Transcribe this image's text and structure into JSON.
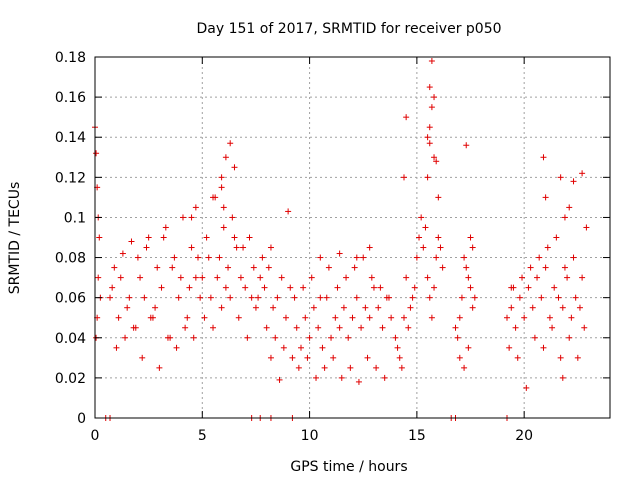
{
  "chart_data": {
    "type": "scatter",
    "title": "Day 151 of 2017, SRMTID for receiver p050",
    "xlabel": "GPS time / hours",
    "ylabel": "SRMTID / TECUs",
    "xlim": [
      0,
      24
    ],
    "ylim": [
      0,
      0.18
    ],
    "x_ticks": [
      0,
      5,
      10,
      15,
      20
    ],
    "x_tick_labels": [
      "0",
      "5",
      "10",
      "15",
      "20"
    ],
    "y_ticks": [
      0,
      0.02,
      0.04,
      0.06,
      0.08,
      0.1,
      0.12,
      0.14,
      0.16,
      0.18
    ],
    "y_tick_labels": [
      "0",
      "0.02",
      "0.04",
      "0.06",
      "0.08",
      "0.1",
      "0.12",
      "0.14",
      "0.16",
      "0.18"
    ],
    "grid": true,
    "marker": "+",
    "series_color": "#e00000",
    "series": [
      {
        "name": "SRMTID",
        "x": [
          0.0,
          0.05,
          0.1,
          0.15,
          0.2,
          0.25,
          0.1,
          0.15,
          0.05,
          0.7,
          0.9,
          1.1,
          1.3,
          1.5,
          1.7,
          1.9,
          2.1,
          2.3,
          2.5,
          2.7,
          2.9,
          3.1,
          3.3,
          3.5,
          3.7,
          3.9,
          4.1,
          4.3,
          4.5,
          4.7,
          4.9,
          1.0,
          1.4,
          1.8,
          2.2,
          2.6,
          3.0,
          3.4,
          3.8,
          4.2,
          4.6,
          0.8,
          1.2,
          1.6,
          2.0,
          2.4,
          2.8,
          3.2,
          3.6,
          4.0,
          4.4,
          4.8,
          5.0,
          5.2,
          5.4,
          5.6,
          5.8,
          6.0,
          6.2,
          6.4,
          6.6,
          6.8,
          7.0,
          7.2,
          7.4,
          7.6,
          7.8,
          5.1,
          5.5,
          5.9,
          6.3,
          6.7,
          7.1,
          7.5,
          5.3,
          5.7,
          6.1,
          6.5,
          6.9,
          7.3,
          7.7,
          4.5,
          4.7,
          5.5,
          5.9,
          6.1,
          6.3,
          6.5,
          5.9,
          6.0,
          7.9,
          8.1,
          8.3,
          8.5,
          8.7,
          8.9,
          9.1,
          9.3,
          8.0,
          8.4,
          8.8,
          9.2,
          8.2,
          8.6,
          8.2,
          9.0,
          9.4,
          9.6,
          9.8,
          10.0,
          10.2,
          10.4,
          10.6,
          10.8,
          11.0,
          11.2,
          11.4,
          11.6,
          11.8,
          12.0,
          12.2,
          12.4,
          12.6,
          12.8,
          13.0,
          13.2,
          13.4,
          13.6,
          13.8,
          9.5,
          9.9,
          10.3,
          10.7,
          11.1,
          11.5,
          11.9,
          12.3,
          12.7,
          13.1,
          13.5,
          9.7,
          10.1,
          10.5,
          10.9,
          11.3,
          11.7,
          12.1,
          12.5,
          12.9,
          13.3,
          13.7,
          10.5,
          11.4,
          12.2,
          12.8,
          14.0,
          14.2,
          14.4,
          14.6,
          14.8,
          14.1,
          14.3,
          14.5,
          14.7,
          14.9,
          14.4,
          14.5,
          15.0,
          15.1,
          15.2,
          15.3,
          15.4,
          15.5,
          15.6,
          15.7,
          15.8,
          15.9,
          16.0,
          16.1,
          16.2,
          15.5,
          15.6,
          15.7,
          15.8,
          15.6,
          15.7,
          15.9,
          16.0,
          15.5,
          15.6,
          15.8,
          16.8,
          16.9,
          17.0,
          17.1,
          17.2,
          17.3,
          17.4,
          17.5,
          17.6,
          17.7,
          17.3,
          17.5,
          17.0,
          17.2,
          17.4,
          17.6,
          19.2,
          19.4,
          19.6,
          19.8,
          20.0,
          20.2,
          20.4,
          20.6,
          20.8,
          21.0,
          21.2,
          21.4,
          21.6,
          21.8,
          22.0,
          22.2,
          22.4,
          22.6,
          22.8,
          19.3,
          19.7,
          20.1,
          20.5,
          20.9,
          21.3,
          21.7,
          22.1,
          22.5,
          19.5,
          19.9,
          20.3,
          20.7,
          21.1,
          21.5,
          21.9,
          22.3,
          22.7,
          20.9,
          21.0,
          21.7,
          21.9,
          22.1,
          22.3,
          22.7,
          22.9,
          19.4,
          21.8
        ],
        "y": [
          0.145,
          0.132,
          0.115,
          0.1,
          0.09,
          0.06,
          0.05,
          0.07,
          0.04,
          0.06,
          0.075,
          0.05,
          0.082,
          0.055,
          0.088,
          0.045,
          0.07,
          0.06,
          0.09,
          0.05,
          0.075,
          0.065,
          0.095,
          0.04,
          0.08,
          0.06,
          0.1,
          0.05,
          0.085,
          0.07,
          0.06,
          0.035,
          0.04,
          0.045,
          0.03,
          0.05,
          0.025,
          0.04,
          0.035,
          0.045,
          0.04,
          0.065,
          0.07,
          0.06,
          0.08,
          0.085,
          0.055,
          0.09,
          0.075,
          0.07,
          0.065,
          0.08,
          0.07,
          0.09,
          0.06,
          0.11,
          0.08,
          0.095,
          0.075,
          0.1,
          0.085,
          0.07,
          0.065,
          0.09,
          0.075,
          0.06,
          0.08,
          0.05,
          0.045,
          0.055,
          0.06,
          0.05,
          0.04,
          0.055,
          0.08,
          0.07,
          0.065,
          0.09,
          0.085,
          0.06,
          0.07,
          0.1,
          0.105,
          0.11,
          0.12,
          0.13,
          0.137,
          0.125,
          0.115,
          0.105,
          0.065,
          0.075,
          0.055,
          0.06,
          0.07,
          0.05,
          0.065,
          0.06,
          0.045,
          0.04,
          0.035,
          0.03,
          0.03,
          0.019,
          0.085,
          0.103,
          0.045,
          0.035,
          0.05,
          0.04,
          0.055,
          0.045,
          0.035,
          0.06,
          0.04,
          0.05,
          0.045,
          0.055,
          0.04,
          0.05,
          0.06,
          0.045,
          0.055,
          0.05,
          0.065,
          0.055,
          0.045,
          0.06,
          0.05,
          0.025,
          0.03,
          0.02,
          0.025,
          0.03,
          0.02,
          0.025,
          0.018,
          0.03,
          0.025,
          0.02,
          0.065,
          0.07,
          0.06,
          0.075,
          0.065,
          0.07,
          0.075,
          0.08,
          0.07,
          0.065,
          0.06,
          0.08,
          0.082,
          0.08,
          0.085,
          0.04,
          0.03,
          0.05,
          0.045,
          0.06,
          0.035,
          0.025,
          0.07,
          0.055,
          0.065,
          0.12,
          0.15,
          0.08,
          0.09,
          0.1,
          0.085,
          0.095,
          0.07,
          0.06,
          0.05,
          0.065,
          0.08,
          0.09,
          0.085,
          0.075,
          0.14,
          0.165,
          0.178,
          0.16,
          0.137,
          0.155,
          0.128,
          0.11,
          0.12,
          0.145,
          0.13,
          0.045,
          0.04,
          0.05,
          0.06,
          0.08,
          0.075,
          0.07,
          0.065,
          0.085,
          0.06,
          0.136,
          0.09,
          0.03,
          0.025,
          0.035,
          0.055,
          0.05,
          0.055,
          0.045,
          0.06,
          0.05,
          0.065,
          0.055,
          0.07,
          0.06,
          0.075,
          0.05,
          0.065,
          0.06,
          0.055,
          0.07,
          0.05,
          0.06,
          0.055,
          0.045,
          0.035,
          0.03,
          0.015,
          0.04,
          0.035,
          0.045,
          0.03,
          0.04,
          0.03,
          0.065,
          0.07,
          0.075,
          0.08,
          0.085,
          0.09,
          0.075,
          0.08,
          0.07,
          0.13,
          0.11,
          0.12,
          0.1,
          0.105,
          0.118,
          0.122,
          0.095,
          0.065,
          0.02
        ],
        "zero_marks_x": [
          0.5,
          0.7,
          7.3,
          7.7,
          8.2,
          9.2,
          16.6,
          16.8,
          19.2
        ]
      }
    ]
  }
}
